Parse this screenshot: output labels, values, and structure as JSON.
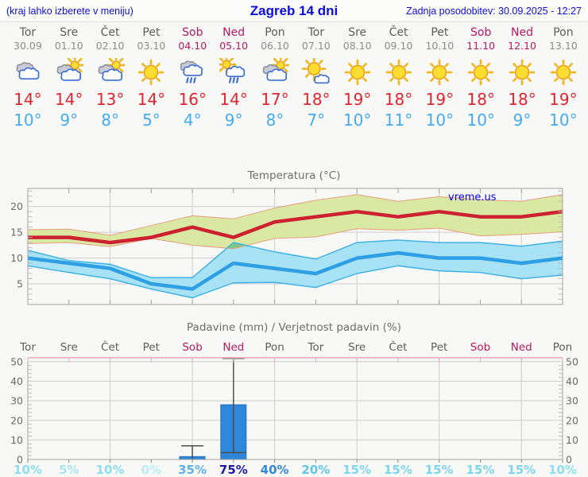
{
  "header": {
    "left_note": "(kraj lahko izberete v meniju)",
    "title": "Zagreb 14 dni",
    "updated": "Zadnja posodobitev: 30.09.2025 - 12:27"
  },
  "colors": {
    "link_blue": "#0c0cdf",
    "weekend": "#b5195c",
    "day_gray": "#5c5c5c",
    "date_gray": "#8c8c8c",
    "high_red": "#e02530",
    "low_blue": "#45abf0"
  },
  "forecast": {
    "days": [
      {
        "name": "Tor",
        "date": "30.09",
        "weekend": false,
        "icon": "cloudy",
        "high": "14°",
        "low": "10°"
      },
      {
        "name": "Sre",
        "date": "01.10",
        "weekend": false,
        "icon": "partly-sunny",
        "high": "14°",
        "low": "9°"
      },
      {
        "name": "Čet",
        "date": "02.10",
        "weekend": false,
        "icon": "partly-sunny",
        "high": "13°",
        "low": "8°"
      },
      {
        "name": "Pet",
        "date": "03.10",
        "weekend": false,
        "icon": "sunny",
        "high": "14°",
        "low": "5°"
      },
      {
        "name": "Sob",
        "date": "04.10",
        "weekend": true,
        "icon": "rain",
        "high": "16°",
        "low": "4°"
      },
      {
        "name": "Ned",
        "date": "05.10",
        "weekend": true,
        "icon": "sun-rain",
        "high": "14°",
        "low": "9°"
      },
      {
        "name": "Pon",
        "date": "06.10",
        "weekend": false,
        "icon": "partly-sunny",
        "high": "17°",
        "low": "8°"
      },
      {
        "name": "Tor",
        "date": "07.10",
        "weekend": false,
        "icon": "mostly-sunny",
        "high": "18°",
        "low": "7°"
      },
      {
        "name": "Sre",
        "date": "08.10",
        "weekend": false,
        "icon": "sunny",
        "high": "19°",
        "low": "10°"
      },
      {
        "name": "Čet",
        "date": "09.10",
        "weekend": false,
        "icon": "sunny",
        "high": "18°",
        "low": "11°"
      },
      {
        "name": "Pet",
        "date": "10.10",
        "weekend": false,
        "icon": "sunny",
        "high": "19°",
        "low": "10°"
      },
      {
        "name": "Sob",
        "date": "11.10",
        "weekend": true,
        "icon": "sunny",
        "high": "18°",
        "low": "10°"
      },
      {
        "name": "Ned",
        "date": "12.10",
        "weekend": true,
        "icon": "sunny",
        "high": "18°",
        "low": "9°"
      },
      {
        "name": "Pon",
        "date": "13.10",
        "weekend": false,
        "icon": "sunny",
        "high": "19°",
        "low": "10°"
      }
    ]
  },
  "chart_data": [
    {
      "type": "area",
      "name": "temperature",
      "title": "Temperatura (°C)",
      "watermark": "vreme.us",
      "x_count": 14,
      "ylim": [
        1,
        23.5
      ],
      "yticks": [
        5,
        10,
        15,
        20
      ],
      "grid_cols_at": [
        2,
        4,
        6,
        8,
        10,
        12
      ],
      "overlap_fill": "#80c87e",
      "series": [
        {
          "name": "max_temp",
          "color": "#cd2130",
          "values": [
            14,
            14,
            13,
            14,
            16,
            14,
            17,
            18,
            19,
            18,
            19,
            18,
            18,
            19
          ]
        },
        {
          "name": "min_temp",
          "color": "#2e9fe4",
          "values": [
            10,
            9,
            8,
            5,
            4,
            9,
            8,
            7,
            10,
            11,
            10,
            10,
            9,
            10
          ]
        },
        {
          "name": "max_range",
          "fill": "#d9e8a3",
          "edge": "#e89f7b",
          "upper": [
            15.5,
            15.6,
            14.4,
            16.3,
            18.2,
            17.6,
            19.7,
            21.2,
            22.3,
            21.0,
            21.9,
            21.3,
            21.0,
            22.3
          ],
          "lower": [
            12.8,
            13.0,
            12.2,
            13.8,
            12.5,
            11.8,
            13.8,
            14.1,
            15.7,
            15.4,
            15.8,
            14.3,
            14.6,
            15.1
          ]
        },
        {
          "name": "min_range",
          "fill": "#a7e3f4",
          "edge": "#41b2e8",
          "upper": [
            11.5,
            9.5,
            8.8,
            6.2,
            6.2,
            13.0,
            11.2,
            9.8,
            13.0,
            13.5,
            13.0,
            13.0,
            12.3,
            13.3
          ],
          "lower": [
            8.5,
            7.2,
            6.0,
            4.0,
            2.3,
            5.2,
            5.3,
            4.3,
            7.0,
            8.5,
            7.5,
            7.2,
            6.0,
            6.7
          ]
        }
      ]
    },
    {
      "type": "bar",
      "name": "precipitation",
      "title": "Padavine (mm) / Verjetnost padavin (%)",
      "categories": [
        "Tor",
        "Sre",
        "Čet",
        "Pet",
        "Sob",
        "Ned",
        "Pon",
        "Tor",
        "Sre",
        "Čet",
        "Pet",
        "Sob",
        "Ned",
        "Pon"
      ],
      "weekend": [
        0,
        0,
        0,
        0,
        1,
        1,
        0,
        0,
        0,
        0,
        0,
        1,
        1,
        0
      ],
      "values": [
        0,
        0,
        0,
        0,
        1.5,
        28,
        0,
        0,
        0,
        0,
        0,
        0,
        0,
        0
      ],
      "whisker_max": [
        null,
        null,
        null,
        null,
        7,
        52,
        null,
        null,
        null,
        null,
        null,
        null,
        null,
        null
      ],
      "median_line": [
        null,
        null,
        null,
        null,
        null,
        3.5,
        null,
        null,
        null,
        null,
        null,
        null,
        null,
        null
      ],
      "probabilities": [
        "10%",
        "5%",
        "10%",
        "0%",
        "35%",
        "75%",
        "40%",
        "20%",
        "15%",
        "15%",
        "15%",
        "15%",
        "15%",
        "10%"
      ],
      "prob_colors": [
        "#8edef0",
        "#a6e7f3",
        "#8edef0",
        "#baedf6",
        "#5cb5e8",
        "#1b1baa",
        "#3787dd",
        "#62c6e8",
        "#7dd6ed",
        "#7dd6ed",
        "#7dd6ed",
        "#7dd6ed",
        "#7dd6ed",
        "#8edef0"
      ],
      "ylim": [
        0,
        52
      ],
      "yticks": [
        0,
        10,
        20,
        30,
        40,
        50
      ],
      "grid_cols_at": [
        2,
        4,
        6,
        8,
        10,
        12
      ],
      "bar_color": "#2f87da",
      "bar_edge": "#2371c0",
      "whisker_color": "#4d4d4d",
      "top_border_color": "#e9a8b8"
    }
  ]
}
